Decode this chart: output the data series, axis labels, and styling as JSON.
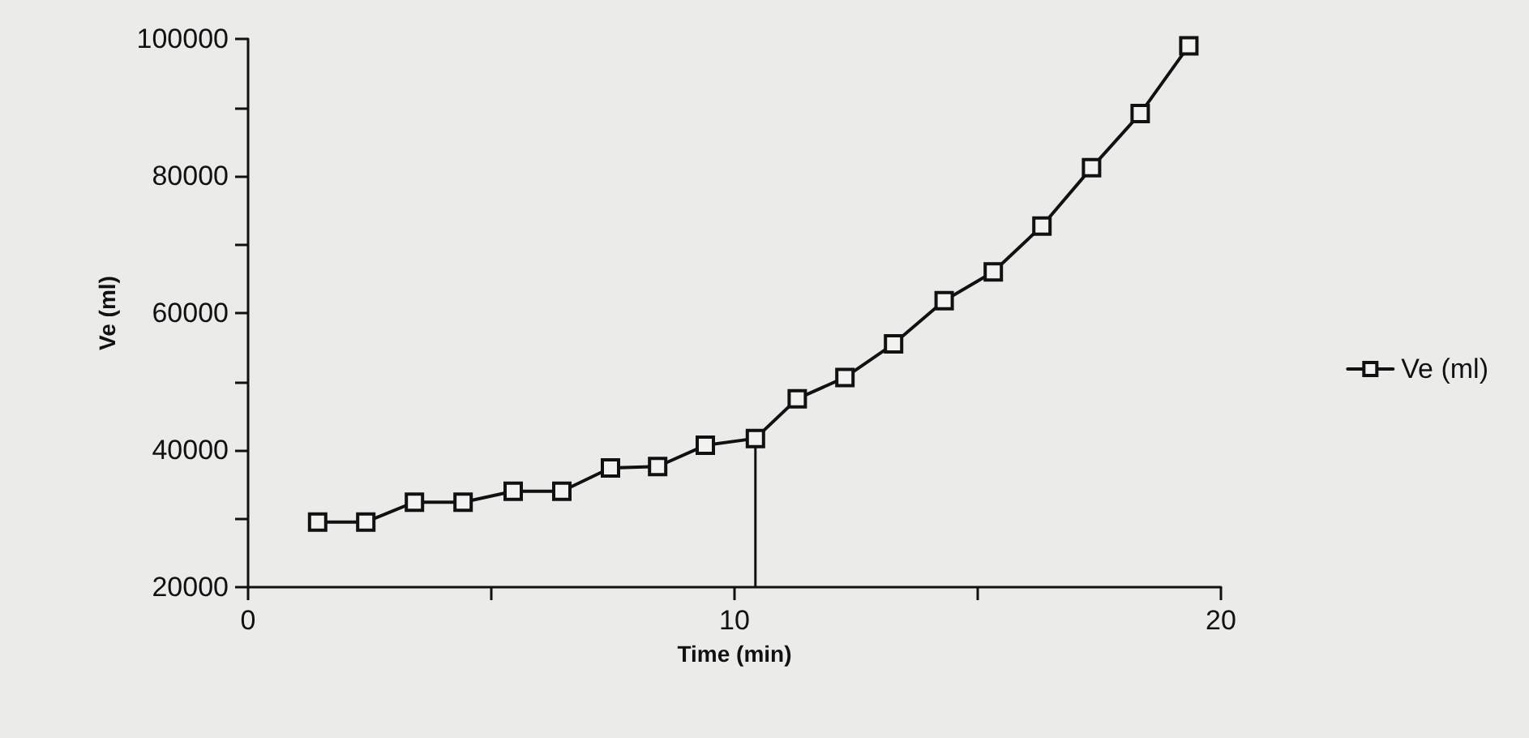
{
  "chart_data": {
    "type": "line",
    "xlabel": "Time (min)",
    "ylabel": "Ve (ml)",
    "x": [
      1.43,
      2.42,
      3.42,
      4.42,
      5.45,
      6.45,
      7.45,
      8.42,
      9.4,
      10.43,
      11.29,
      12.27,
      13.27,
      14.31,
      15.32,
      16.32,
      17.34,
      18.34,
      19.34
    ],
    "series": [
      {
        "name": "Ve (ml)",
        "color": "#111111",
        "values": [
          29500,
          29500,
          32400,
          32400,
          34000,
          34000,
          37400,
          37600,
          40700,
          41700,
          47500,
          50600,
          55500,
          61800,
          66000,
          72700,
          81200,
          89100,
          99000
        ]
      }
    ],
    "xlim": [
      0,
      20
    ],
    "xticks": [
      0,
      {
        "value": 5,
        "label": null
      },
      10,
      {
        "value": 15,
        "label": null
      },
      20
    ],
    "ylim": [
      20000,
      100000
    ],
    "yticks": [
      20000,
      {
        "value": 30000,
        "label": null
      },
      40000,
      {
        "value": 50000,
        "label": null
      },
      60000,
      {
        "value": 70000,
        "label": null
      },
      80000,
      {
        "value": 90000,
        "label": null
      },
      100000
    ],
    "ref_lines": [
      {
        "axis": "x",
        "value": 10.43,
        "color": "#111111"
      }
    ],
    "marker": "square",
    "line_style": "solid",
    "legend": "right",
    "grid": false
  }
}
